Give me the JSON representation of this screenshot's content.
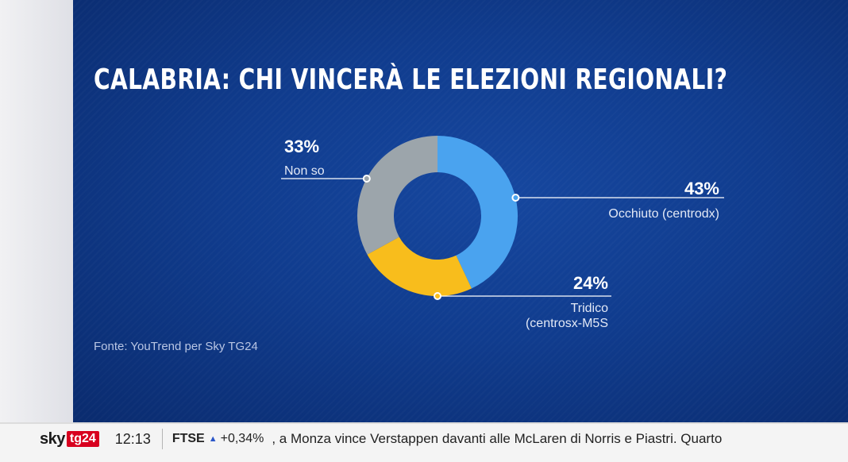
{
  "title": "CALABRIA: CHI VINCERÀ LE ELEZIONI REGIONALI?",
  "source": "Fonte: YouTrend per Sky TG24",
  "chart_data": {
    "type": "pie",
    "title": "CALABRIA: CHI VINCERÀ LE ELEZIONI REGIONALI?",
    "slices": [
      {
        "label": "Occhiuto (centrodx)",
        "value": 43,
        "display": "43%",
        "label_lines": [
          "Occhiuto (centrodx)"
        ],
        "color": "#4aa3ef"
      },
      {
        "label": "Tridico (centrosx-M5S)",
        "value": 24,
        "display": "24%",
        "label_lines": [
          "Tridico",
          "(centrosx-M5S"
        ],
        "color": "#f8bd1c"
      },
      {
        "label": "Non so",
        "value": 33,
        "display": "33%",
        "label_lines": [
          "Non so"
        ],
        "color": "#9ca5ab"
      }
    ]
  },
  "ticker": {
    "logo_sky": "sky",
    "logo_tg24": "tg24",
    "time": "12:13",
    "market_name": "FTSE",
    "market_icon": "triangle-up-icon",
    "market_value": "+0,34%",
    "headline": ", a Monza vince Verstappen davanti alle McLaren di Norris e Piastri. Quarto"
  }
}
